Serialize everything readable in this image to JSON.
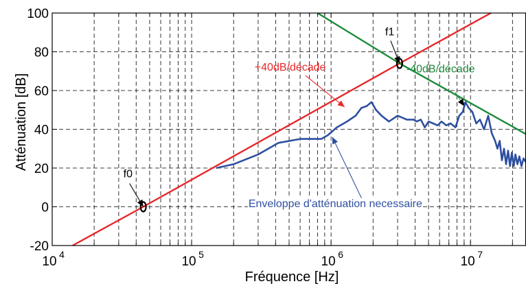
{
  "chart_data": {
    "type": "line",
    "xlabel": "Fréquence [Hz]",
    "ylabel": "Atténuation [dB]",
    "xscale": "log",
    "xlim": [
      10000,
      25000000
    ],
    "ylim": [
      -20,
      100
    ],
    "x_ticks": [
      {
        "value": 10000,
        "base": "10",
        "exp": "4"
      },
      {
        "value": 100000,
        "base": "10",
        "exp": "5"
      },
      {
        "value": 1000000,
        "base": "10",
        "exp": "6"
      },
      {
        "value": 10000000,
        "base": "10",
        "exp": "7"
      }
    ],
    "y_ticks": [
      {
        "value": -20,
        "label": "-20"
      },
      {
        "value": 0,
        "label": "0"
      },
      {
        "value": 20,
        "label": "20"
      },
      {
        "value": 40,
        "label": "40"
      },
      {
        "value": 60,
        "label": "60"
      },
      {
        "value": 80,
        "label": "80"
      },
      {
        "value": 100,
        "label": "100"
      }
    ],
    "grid": true,
    "series": [
      {
        "color": "#e8272b",
        "x": [
          14000,
          45000,
          3100000,
          25000000
        ],
        "y": [
          -20,
          0,
          74,
          110
        ]
      },
      {
        "color": "#1c8a3a",
        "x": [
          800000,
          3100000,
          25000000
        ],
        "y": [
          100,
          74,
          37.5
        ]
      },
      {
        "color": "#2e4fa0",
        "x": [
          150000,
          200000,
          300000,
          420000,
          600000,
          850000,
          950000,
          1100000,
          1300000,
          1500000,
          1650000,
          1800000,
          1950000,
          2100000,
          2300000,
          2600000,
          3000000,
          3500000,
          3900000,
          4100000,
          4400000,
          4700000,
          5000000,
          5400000,
          5800000,
          6200000,
          6700000,
          7200000,
          7800000,
          8300000,
          8800000,
          9200000,
          9700000,
          10300000,
          11000000,
          11700000,
          12500000,
          13400000,
          14200000,
          15000000,
          15600000,
          16200000,
          16800000,
          17400000,
          18000000,
          18600000,
          19200000,
          19800000,
          20400000,
          21000000,
          21700000,
          22400000,
          23200000,
          24000000,
          25000000
        ],
        "y": [
          20,
          22,
          27,
          33,
          35,
          35,
          37,
          41,
          44,
          47,
          51,
          52,
          54,
          50,
          47,
          44,
          47,
          45,
          45,
          44,
          45,
          41,
          44,
          43,
          42,
          44,
          42,
          43,
          41,
          47,
          49,
          54,
          51,
          49,
          43,
          45,
          40,
          47,
          38,
          34,
          30,
          34,
          24,
          30,
          22,
          29,
          21,
          28,
          21,
          27,
          22,
          26,
          21,
          25,
          23
        ]
      }
    ],
    "annotations": [
      {
        "text": "+40dB/décade",
        "color": "#e8272b",
        "anchor_x": 1250000,
        "anchor_y": 51.5
      },
      {
        "text": "-40dB/décade",
        "color": "#1c8a3a",
        "anchor_x": 9000000,
        "anchor_y": 52
      },
      {
        "text": "Enveloppe d'atténuation necessaire",
        "color": "#2e4fa0",
        "anchor_x": 1020000,
        "anchor_y": 36
      },
      {
        "text": "f1",
        "color": "#000000",
        "anchor_x": 3100000,
        "anchor_y": 74
      },
      {
        "text": "f0",
        "color": "#000000",
        "anchor_x": 45000,
        "anchor_y": 0
      }
    ],
    "markers": [
      {
        "x": 45000,
        "y": 0,
        "label": "f0"
      },
      {
        "x": 3100000,
        "y": 74,
        "label": "f1"
      }
    ]
  }
}
